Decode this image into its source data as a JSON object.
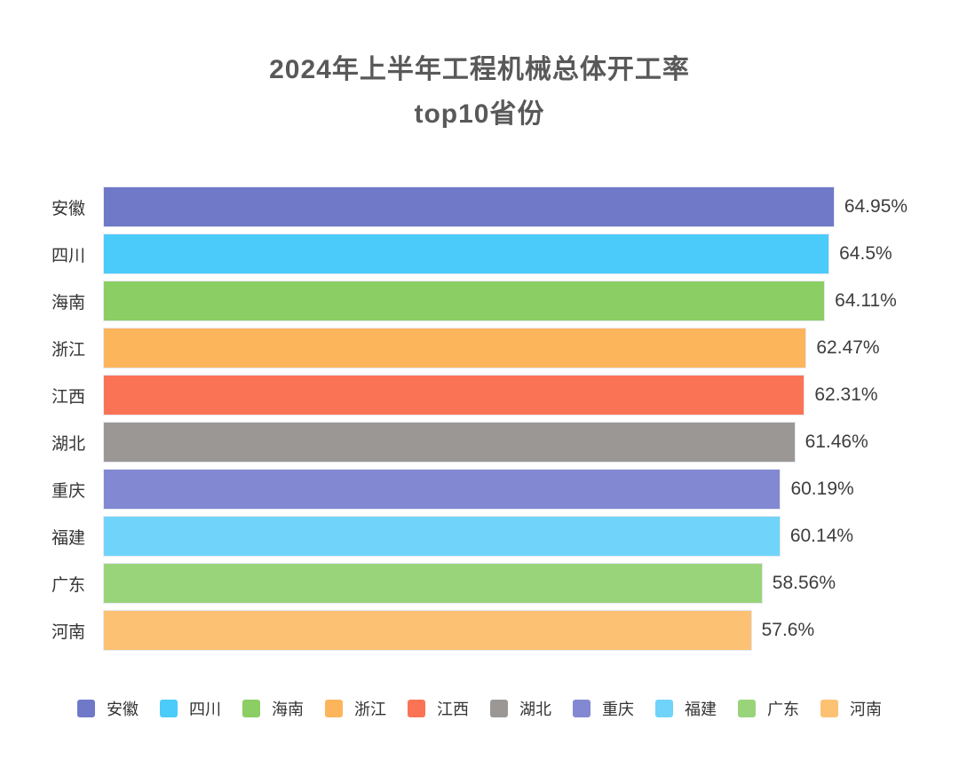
{
  "title": {
    "line1": "2024年上半年工程机械总体开工率",
    "line2": "top10省份"
  },
  "colors": {
    "title_text": "#595959",
    "label_text": "#333333",
    "value_text": "#3d3d3d",
    "background": "#ffffff"
  },
  "chart_data": {
    "type": "bar",
    "orientation": "horizontal",
    "title": "2024年上半年工程机械总体开工率 top10省份",
    "xlabel": "",
    "ylabel": "",
    "categories": [
      "安徽",
      "四川",
      "海南",
      "浙江",
      "江西",
      "湖北",
      "重庆",
      "福建",
      "广东",
      "河南"
    ],
    "values": [
      64.95,
      64.5,
      64.11,
      62.47,
      62.31,
      61.46,
      60.19,
      60.14,
      58.56,
      57.6
    ],
    "value_labels": [
      "64.95%",
      "64.5%",
      "64.11%",
      "62.47%",
      "62.31%",
      "61.46%",
      "60.19%",
      "60.14%",
      "58.56%",
      "57.6%"
    ],
    "bar_colors": [
      "#6F79C8",
      "#4ACBFA",
      "#8BCE63",
      "#FDB55C",
      "#FB7355",
      "#9B9795",
      "#8289D2",
      "#70D4FA",
      "#9AD47A",
      "#FDC173"
    ],
    "xlim": [
      0,
      76
    ],
    "grid": false,
    "data_labels": true,
    "legend_position": "bottom",
    "legend": [
      "安徽",
      "四川",
      "海南",
      "浙江",
      "江西",
      "湖北",
      "重庆",
      "福建",
      "广东",
      "河南"
    ]
  }
}
